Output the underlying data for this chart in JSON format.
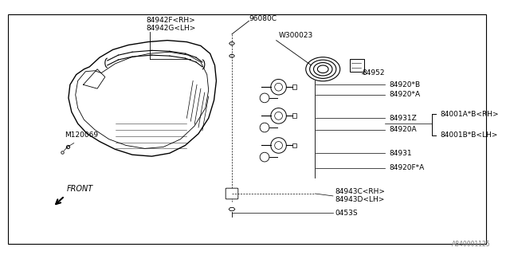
{
  "bg_color": "#ffffff",
  "line_color": "#000000",
  "text_color": "#000000",
  "watermark": "A840001125",
  "labels": {
    "84942F_RH": "84942F<RH>",
    "84942G_LH": "84942G<LH>",
    "96080C": "96080C",
    "W300023": "W300023",
    "84952": "84952",
    "84920B": "84920*B",
    "84920A_star": "84920*A",
    "84931Z": "84931Z",
    "84920A": "84920A",
    "84001A": "84001A*B<RH>",
    "84001B": "84001B*B<LH>",
    "84931": "84931",
    "84920F": "84920F*A",
    "84943C": "84943C<RH>",
    "84943D": "84943D<LH>",
    "0453S": "0453S",
    "M120069": "M120069",
    "FRONT": "FRONT"
  },
  "font_size": 6.5
}
